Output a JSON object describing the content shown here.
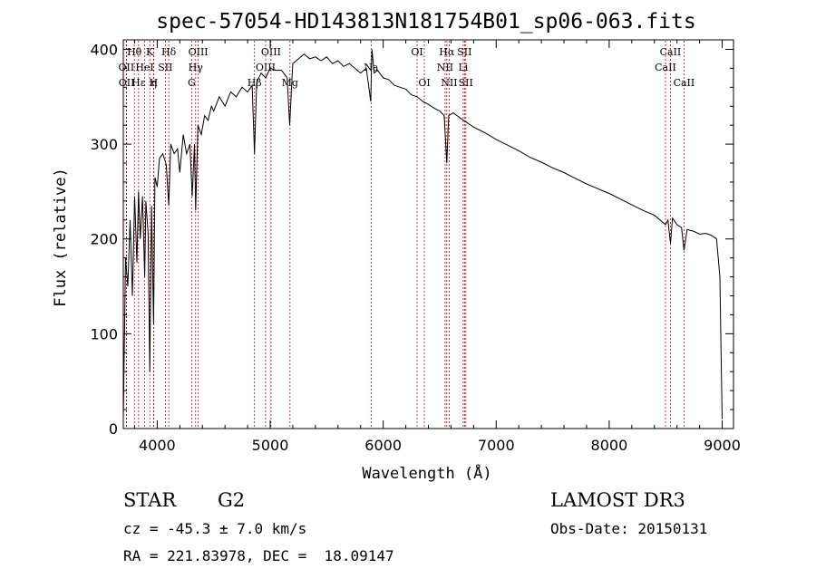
{
  "chart_data": {
    "type": "line",
    "title": "spec-57054-HD143813N181754B01_sp06-063.fits",
    "xlabel": "Wavelength (Å)",
    "ylabel": "Flux (relative)",
    "xlim": [
      3700,
      9100
    ],
    "ylim": [
      0,
      410
    ],
    "xticks": [
      4000,
      5000,
      6000,
      7000,
      8000,
      9000
    ],
    "yticks": [
      0,
      100,
      200,
      300,
      400
    ],
    "series": [
      {
        "name": "spectrum",
        "x": [
          3700,
          3720,
          3740,
          3760,
          3780,
          3800,
          3820,
          3835,
          3850,
          3870,
          3889,
          3900,
          3920,
          3934,
          3950,
          3968,
          3980,
          4000,
          4020,
          4050,
          4080,
          4102,
          4120,
          4150,
          4180,
          4200,
          4230,
          4260,
          4290,
          4310,
          4330,
          4340,
          4360,
          4390,
          4420,
          4450,
          4480,
          4500,
          4550,
          4600,
          4650,
          4700,
          4750,
          4800,
          4840,
          4861,
          4880,
          4920,
          4960,
          5000,
          5050,
          5100,
          5150,
          5172,
          5183,
          5200,
          5250,
          5300,
          5350,
          5400,
          5450,
          5500,
          5550,
          5600,
          5650,
          5700,
          5750,
          5800,
          5850,
          5890,
          5900,
          5920,
          5950,
          6000,
          6050,
          6100,
          6150,
          6200,
          6250,
          6300,
          6350,
          6400,
          6450,
          6500,
          6540,
          6563,
          6580,
          6620,
          6700,
          6800,
          6900,
          7000,
          7100,
          7200,
          7300,
          7400,
          7500,
          7600,
          7700,
          7800,
          7900,
          8000,
          8100,
          8200,
          8300,
          8400,
          8498,
          8520,
          8542,
          8560,
          8600,
          8640,
          8662,
          8690,
          8750,
          8800,
          8850,
          8900,
          8950,
          8980,
          8990,
          9000
        ],
        "values": [
          10,
          180,
          150,
          220,
          140,
          245,
          175,
          250,
          200,
          245,
          160,
          240,
          205,
          60,
          235,
          110,
          265,
          255,
          285,
          290,
          278,
          235,
          300,
          290,
          295,
          270,
          310,
          290,
          300,
          245,
          300,
          230,
          320,
          310,
          330,
          325,
          340,
          335,
          350,
          340,
          355,
          350,
          360,
          355,
          362,
          290,
          365,
          375,
          370,
          380,
          378,
          378,
          370,
          320,
          345,
          385,
          390,
          395,
          390,
          392,
          388,
          392,
          385,
          388,
          382,
          385,
          380,
          375,
          380,
          345,
          400,
          375,
          378,
          370,
          368,
          362,
          360,
          358,
          352,
          350,
          345,
          342,
          338,
          335,
          330,
          280,
          330,
          333,
          326,
          318,
          312,
          305,
          299,
          293,
          286,
          281,
          275,
          270,
          264,
          258,
          253,
          248,
          242,
          236,
          230,
          225,
          215,
          220,
          195,
          222,
          215,
          212,
          188,
          210,
          208,
          205,
          206,
          204,
          200,
          160,
          80,
          10
        ]
      }
    ],
    "line_markers": [
      {
        "label": "Hθ",
        "wavelength": 3798,
        "row": 1
      },
      {
        "label": "OII",
        "wavelength": 3727,
        "row": 2
      },
      {
        "label": "OII",
        "wavelength": 3729,
        "row": 3
      },
      {
        "label": "Hε",
        "wavelength": 3835,
        "row": 3
      },
      {
        "label": "HeI",
        "wavelength": 3889,
        "row": 2
      },
      {
        "label": "K",
        "wavelength": 3934,
        "row": 1
      },
      {
        "label": "η",
        "wavelength": 3970,
        "row": 3
      },
      {
        "label": "H",
        "wavelength": 3968,
        "row": 3
      },
      {
        "label": "SII",
        "wavelength": 4072,
        "row": 2
      },
      {
        "label": "Hδ",
        "wavelength": 4102,
        "row": 1
      },
      {
        "label": "OIII",
        "wavelength": 4363,
        "row": 1
      },
      {
        "label": "Hγ",
        "wavelength": 4340,
        "row": 2
      },
      {
        "label": "G",
        "wavelength": 4305,
        "row": 3
      },
      {
        "label": "Hβ",
        "wavelength": 4861,
        "row": 3
      },
      {
        "label": "OIII",
        "wavelength": 5007,
        "row": 1
      },
      {
        "label": "OIII",
        "wavelength": 4959,
        "row": 2
      },
      {
        "label": "Mg",
        "wavelength": 5175,
        "row": 3
      },
      {
        "label": "Na",
        "wavelength": 5893,
        "row": 2
      },
      {
        "label": "OI",
        "wavelength": 6300,
        "row": 1
      },
      {
        "label": "OI",
        "wavelength": 6364,
        "row": 3
      },
      {
        "label": "Hα",
        "wavelength": 6563,
        "row": 1
      },
      {
        "label": "SII",
        "wavelength": 6720,
        "row": 1
      },
      {
        "label": "NII",
        "wavelength": 6548,
        "row": 2
      },
      {
        "label": "Li",
        "wavelength": 6708,
        "row": 2
      },
      {
        "label": "NII",
        "wavelength": 6584,
        "row": 3
      },
      {
        "label": "SII",
        "wavelength": 6731,
        "row": 3
      },
      {
        "label": "CaII",
        "wavelength": 8542,
        "row": 1
      },
      {
        "label": "CaII",
        "wavelength": 8498,
        "row": 2
      },
      {
        "label": "CaII",
        "wavelength": 8662,
        "row": 3
      }
    ]
  },
  "info": {
    "object_class": "STAR",
    "subclass": "G2",
    "survey": "LAMOST DR3",
    "redshift": "cz = -45.3 ± 7.0 km/s",
    "obs_date": "Obs-Date: 20150131",
    "coords": "RA = 221.83978, DEC =  18.09147"
  },
  "colors": {
    "spectrum": "#000000",
    "marker_line": "#cc0000",
    "axes": "#000000",
    "background": "#ffffff"
  }
}
